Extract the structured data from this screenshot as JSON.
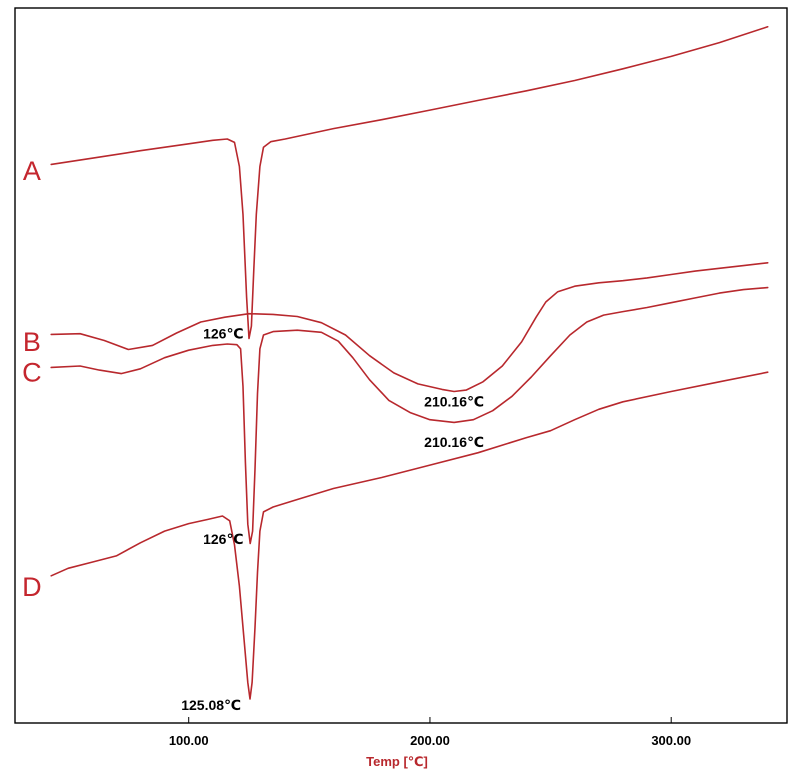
{
  "chart_data": {
    "type": "line",
    "title": "",
    "xlabel": "Temp [℃]",
    "ylabel": "",
    "xlim": [
      28,
      348
    ],
    "x_ticks": [
      100,
      200,
      300
    ],
    "x_tick_labels": [
      "100.00",
      "200.00",
      "300.00"
    ],
    "grid": false,
    "legend": "none",
    "colors": {
      "curve": "#b8282d",
      "label": "#c4262e",
      "xlabel": "#b8282d",
      "axis": "#000000"
    },
    "y_note": "vertical axis unlabeled; values are relative heat-flow in arbitrary units (0 = bottom of plot, 100 = top)",
    "series": [
      {
        "name": "A",
        "points": [
          [
            43,
            79.3
          ],
          [
            60,
            80.2
          ],
          [
            80,
            81.3
          ],
          [
            100,
            82.3
          ],
          [
            110,
            82.8
          ],
          [
            116,
            83.0
          ],
          [
            119,
            82.5
          ],
          [
            121,
            79
          ],
          [
            122.5,
            72
          ],
          [
            124,
            60
          ],
          [
            125,
            54
          ],
          [
            126,
            55.8
          ],
          [
            127,
            64
          ],
          [
            128,
            72
          ],
          [
            129.5,
            79
          ],
          [
            131,
            81.8
          ],
          [
            134,
            82.6
          ],
          [
            140,
            83.0
          ],
          [
            160,
            84.5
          ],
          [
            180,
            85.8
          ],
          [
            200,
            87.2
          ],
          [
            220,
            88.6
          ],
          [
            240,
            90.0
          ],
          [
            260,
            91.5
          ],
          [
            280,
            93.2
          ],
          [
            300,
            95.0
          ],
          [
            320,
            97.0
          ],
          [
            340,
            99.3
          ]
        ]
      },
      {
        "name": "B",
        "points": [
          [
            43,
            54.6
          ],
          [
            55,
            54.7
          ],
          [
            65,
            53.7
          ],
          [
            75,
            52.4
          ],
          [
            85,
            53.0
          ],
          [
            95,
            54.8
          ],
          [
            105,
            56.4
          ],
          [
            115,
            57.1
          ],
          [
            125,
            57.6
          ],
          [
            135,
            57.5
          ],
          [
            145,
            57.2
          ],
          [
            155,
            56.3
          ],
          [
            165,
            54.5
          ],
          [
            175,
            51.5
          ],
          [
            185,
            49.0
          ],
          [
            195,
            47.4
          ],
          [
            205,
            46.6
          ],
          [
            210,
            46.3
          ],
          [
            215,
            46.5
          ],
          [
            222,
            47.7
          ],
          [
            230,
            50.0
          ],
          [
            238,
            53.5
          ],
          [
            244,
            57.1
          ],
          [
            248,
            59.3
          ],
          [
            253,
            60.8
          ],
          [
            260,
            61.6
          ],
          [
            270,
            62.1
          ],
          [
            280,
            62.4
          ],
          [
            290,
            62.8
          ],
          [
            300,
            63.3
          ],
          [
            310,
            63.8
          ],
          [
            320,
            64.2
          ],
          [
            330,
            64.6
          ],
          [
            340,
            65.0
          ]
        ]
      },
      {
        "name": "C",
        "points": [
          [
            43,
            49.8
          ],
          [
            55,
            50.0
          ],
          [
            63,
            49.4
          ],
          [
            72,
            48.9
          ],
          [
            80,
            49.6
          ],
          [
            90,
            51.2
          ],
          [
            100,
            52.3
          ],
          [
            110,
            53.0
          ],
          [
            116,
            53.2
          ],
          [
            120,
            53.1
          ],
          [
            121.5,
            52.5
          ],
          [
            122.5,
            47
          ],
          [
            123.5,
            36
          ],
          [
            124.5,
            27
          ],
          [
            125.5,
            24.2
          ],
          [
            126.5,
            26
          ],
          [
            127.5,
            35
          ],
          [
            128.5,
            46
          ],
          [
            129.5,
            52.5
          ],
          [
            131,
            54.5
          ],
          [
            135,
            55.0
          ],
          [
            145,
            55.2
          ],
          [
            155,
            54.9
          ],
          [
            162,
            53.6
          ],
          [
            168,
            51.2
          ],
          [
            175,
            48.0
          ],
          [
            183,
            45.0
          ],
          [
            192,
            43.2
          ],
          [
            200,
            42.2
          ],
          [
            210,
            41.8
          ],
          [
            218,
            42.2
          ],
          [
            226,
            43.5
          ],
          [
            234,
            45.6
          ],
          [
            242,
            48.4
          ],
          [
            250,
            51.5
          ],
          [
            258,
            54.5
          ],
          [
            265,
            56.4
          ],
          [
            272,
            57.4
          ],
          [
            280,
            57.9
          ],
          [
            290,
            58.5
          ],
          [
            300,
            59.2
          ],
          [
            310,
            59.9
          ],
          [
            320,
            60.6
          ],
          [
            330,
            61.1
          ],
          [
            340,
            61.4
          ]
        ]
      },
      {
        "name": "D",
        "points": [
          [
            43,
            19.5
          ],
          [
            50,
            20.6
          ],
          [
            60,
            21.5
          ],
          [
            70,
            22.4
          ],
          [
            80,
            24.3
          ],
          [
            90,
            26.0
          ],
          [
            100,
            27.1
          ],
          [
            108,
            27.7
          ],
          [
            114,
            28.2
          ],
          [
            117,
            27.5
          ],
          [
            119,
            24
          ],
          [
            121,
            18
          ],
          [
            123,
            10
          ],
          [
            124.5,
            4
          ],
          [
            125.4,
            1.6
          ],
          [
            126.3,
            4
          ],
          [
            127.5,
            12
          ],
          [
            128.5,
            20
          ],
          [
            129.5,
            26
          ],
          [
            131,
            28.8
          ],
          [
            135,
            29.5
          ],
          [
            145,
            30.6
          ],
          [
            160,
            32.2
          ],
          [
            180,
            33.8
          ],
          [
            200,
            35.6
          ],
          [
            220,
            37.4
          ],
          [
            240,
            39.6
          ],
          [
            250,
            40.6
          ],
          [
            260,
            42.2
          ],
          [
            270,
            43.7
          ],
          [
            280,
            44.8
          ],
          [
            300,
            46.3
          ],
          [
            320,
            47.7
          ],
          [
            340,
            49.1
          ]
        ]
      }
    ],
    "curve_labels": [
      {
        "name": "A",
        "text": "A",
        "x": 35,
        "y": 78.5
      },
      {
        "name": "B",
        "text": "B",
        "x": 35,
        "y": 53.6
      },
      {
        "name": "C",
        "text": "C",
        "x": 35,
        "y": 49.2
      },
      {
        "name": "D",
        "text": "D",
        "x": 35,
        "y": 18.0
      }
    ],
    "annotations": [
      {
        "text": "126℃",
        "x": 126,
        "y": 54.0,
        "anchor": "end"
      },
      {
        "text": "210.16℃",
        "x": 210,
        "y": 44.1,
        "anchor": "middle"
      },
      {
        "text": "210.16℃",
        "x": 210,
        "y": 38.2,
        "anchor": "middle"
      },
      {
        "text": "126℃",
        "x": 126,
        "y": 24.1,
        "anchor": "end"
      },
      {
        "text": "125.08℃",
        "x": 125,
        "y": 0.0,
        "anchor": "end"
      }
    ]
  }
}
